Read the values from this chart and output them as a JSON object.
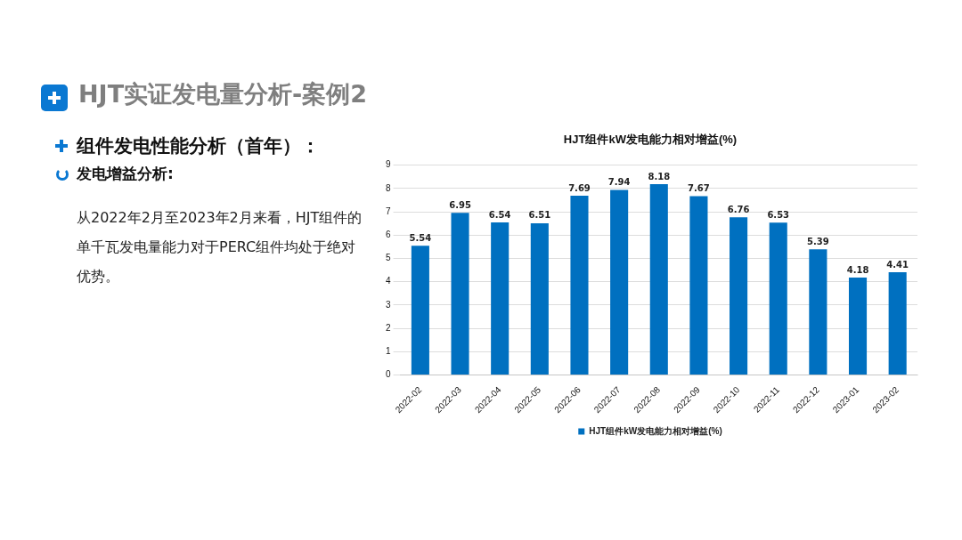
{
  "chart_data": {
    "type": "bar",
    "title": "HJT组件kW发电能力相对增益(%)",
    "categories": [
      "2022-02",
      "2022-03",
      "2022-04",
      "2022-05",
      "2022-06",
      "2022-07",
      "2022-08",
      "2022-09",
      "2022-10",
      "2022-11",
      "2022-12",
      "2023-01",
      "2023-02"
    ],
    "series": [
      {
        "name": "HJT组件kW发电能力相对增益(%)",
        "color": "#0070c0",
        "values": [
          5.54,
          6.95,
          6.54,
          6.51,
          7.69,
          7.94,
          8.18,
          7.67,
          6.76,
          6.53,
          5.39,
          4.18,
          4.41
        ]
      }
    ],
    "ylim": [
      0,
      9
    ],
    "yticks": [
      0,
      1,
      2,
      3,
      4,
      5,
      6,
      7,
      8,
      9
    ],
    "grid": "y",
    "legend": "bottom",
    "data_labels": true,
    "annotations": [
      "HJT实证发电量分析-案例2",
      "组件发电性能分析（首年）：",
      "发电增益分析:",
      "从2022年2月至2023年2月来看，HJT组件的单千瓦发电量能力对于PERC组件均处于绝对优势。"
    ]
  }
}
